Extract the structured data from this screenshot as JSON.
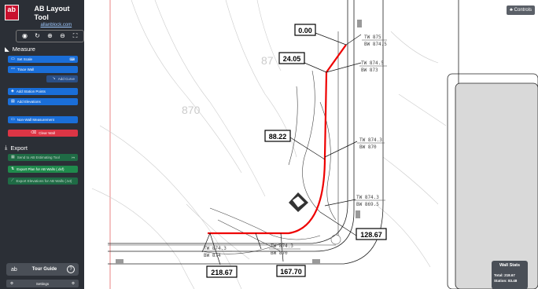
{
  "app": {
    "title": "AB Layout Tool",
    "link": "allanblock.com",
    "logo_text": "ab"
  },
  "toolbar": {
    "icons": [
      "camera-icon",
      "rotate-icon",
      "zoom-in-icon",
      "zoom-out-icon",
      "fullscreen-icon"
    ]
  },
  "measure": {
    "heading": "Measure",
    "set_scale": "Set Scale",
    "trace_wall": "Trace Wall",
    "add_curve": "Add Curve",
    "add_station_points": "Add Station Points",
    "add_elevations": "Add Elevations",
    "non_wall_measurement": "Non-Wall Measurement",
    "clear_wall": "Clear Wall"
  },
  "export": {
    "heading": "Export",
    "send_estimating": "Send to AB Estimating Tool",
    "export_plan": "Export Plan for AB Walls (.dxf)",
    "export_elevations": "Export Elevations for AB Walls (.txt)"
  },
  "footer": {
    "tour_guide": "Tour Guide",
    "settings": "Settings"
  },
  "map": {
    "controls": "Controls",
    "station_labels": [
      "0.00",
      "24.05",
      "88.22",
      "128.67",
      "167.70",
      "218.67"
    ],
    "elevations": [
      "TW 875",
      "BW 874.5",
      "TW 874.5",
      "BW 873",
      "TW 874.3",
      "BW 870",
      "TW 874.3",
      "BW 869.5",
      "TW 874.3",
      "BW 874",
      "TW 874.3",
      "BW 870"
    ],
    "contours": [
      "870",
      "87"
    ]
  },
  "stats": {
    "title": "Wall Stats",
    "total": "Total: 218.67",
    "station": "Station: 83.48"
  }
}
